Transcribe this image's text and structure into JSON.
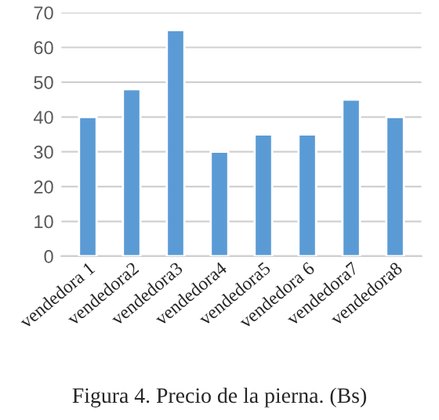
{
  "chart_data": {
    "type": "bar",
    "categories": [
      "vendedora 1",
      "vendedora2",
      "vendedora3",
      "vendedora4",
      "vendedora5",
      "vendedora 6",
      "vendedora7",
      "vendedora8"
    ],
    "values": [
      40,
      48,
      65,
      30,
      35,
      35,
      45,
      40
    ],
    "color": "#5b9bd5",
    "ylim": [
      0,
      70
    ],
    "yticks": [
      0,
      10,
      20,
      30,
      40,
      50,
      60,
      70
    ],
    "grid": "y",
    "annotations": [
      "Figura 4. Precio de la pierna. (Bs)"
    ]
  }
}
